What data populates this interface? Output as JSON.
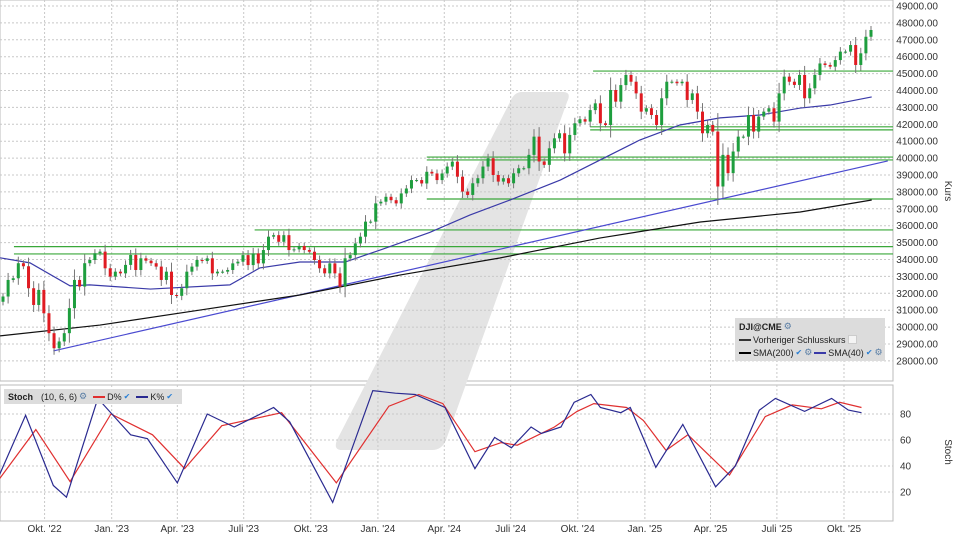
{
  "chart_data": [
    {
      "type": "candlestick",
      "symbol": "DJI@CME",
      "ylabel": "Kurs",
      "ylim": [
        27000,
        49000
      ],
      "yticks": [
        "28000.00",
        "29000.00",
        "30000.00",
        "31000.00",
        "32000.00",
        "33000.00",
        "34000.00",
        "35000.00",
        "36000.00",
        "37000.00",
        "38000.00",
        "39000.00",
        "40000.00",
        "41000.00",
        "42000.00",
        "43000.00",
        "44000.00",
        "45000.00",
        "46000.00",
        "47000.00",
        "48000.00",
        "49000.00"
      ],
      "xticks": [
        {
          "date": "2022-10-01",
          "label": "Okt. '22"
        },
        {
          "date": "2023-01-01",
          "label": "Jan. '23"
        },
        {
          "date": "2023-04-01",
          "label": "Apr. '23"
        },
        {
          "date": "2023-07-01",
          "label": "Juli '23"
        },
        {
          "date": "2023-10-01",
          "label": "Okt. '23"
        },
        {
          "date": "2024-01-01",
          "label": "Jan. '24"
        },
        {
          "date": "2024-04-01",
          "label": "Apr. '24"
        },
        {
          "date": "2024-07-01",
          "label": "Juli '24"
        },
        {
          "date": "2024-10-01",
          "label": "Okt. '24"
        },
        {
          "date": "2025-01-01",
          "label": "Jan. '25"
        },
        {
          "date": "2025-04-01",
          "label": "Apr. '25"
        },
        {
          "date": "2025-07-01",
          "label": "Juli '25"
        },
        {
          "date": "2025-10-01",
          "label": "Okt. '25"
        }
      ],
      "grid": true,
      "interval": "weekly",
      "first_date": "2022-08-05",
      "first_open": 31500,
      "close": [
        31810,
        32790,
        32890,
        33780,
        33600,
        32300,
        31310,
        32200,
        30820,
        29640,
        28750,
        29150,
        29640,
        31120,
        32790,
        32400,
        33780,
        33970,
        34370,
        34465,
        33480,
        32990,
        33280,
        33180,
        33680,
        34270,
        33380,
        34070,
        33930,
        33780,
        33580,
        32790,
        33280,
        31900,
        31850,
        32300,
        33280,
        33580,
        33970,
        33910,
        34070,
        33180,
        33280,
        33280,
        33380,
        33770,
        33870,
        34260,
        33670,
        34360,
        33770,
        34560,
        35350,
        35440,
        35050,
        35440,
        34560,
        34600,
        34800,
        34560,
        34460,
        33970,
        33480,
        33180,
        33770,
        33180,
        32390,
        34070,
        34260,
        34950,
        35350,
        36240,
        36240,
        37320,
        37420,
        37710,
        37510,
        37320,
        37910,
        38200,
        38700,
        38700,
        38500,
        39190,
        39090,
        38700,
        39090,
        39500,
        39790,
        38900,
        38020,
        37820,
        38510,
        38810,
        39500,
        39990,
        39000,
        38610,
        38810,
        38510,
        39100,
        39400,
        39400,
        40190,
        41270,
        39800,
        39600,
        40580,
        41170,
        41470,
        40280,
        41370,
        42060,
        42300,
        42160,
        42840,
        43240,
        42060,
        41960,
        44030,
        43340,
        44320,
        44920,
        44520,
        43830,
        42750,
        42950,
        42550,
        41960,
        43540,
        44520,
        44520,
        44430,
        44520,
        43440,
        43830,
        42750,
        41470,
        41960,
        41570,
        38320,
        40190,
        39110,
        40390,
        41270,
        41270,
        42550,
        41570,
        42460,
        42750,
        42950,
        42160,
        43830,
        44820,
        44520,
        44330,
        44920,
        43540,
        44130,
        44920,
        45600,
        45510,
        45410,
        45800,
        46300,
        46300,
        46690,
        45510,
        46200,
        47180,
        47580
      ],
      "colors": {
        "up": "#1e9e3e",
        "down": "#e01b22",
        "wick": "#777777"
      },
      "sma": [
        {
          "name": "SMA(200)",
          "color": "#111111",
          "points": [
            [
              "2022-08-01",
              29480
            ],
            [
              "2022-12-16",
              30120
            ],
            [
              "2023-05-02",
              31010
            ],
            [
              "2023-09-16",
              31900
            ],
            [
              "2024-01-31",
              33080
            ],
            [
              "2024-06-16",
              34090
            ],
            [
              "2024-10-31",
              35270
            ],
            [
              "2025-03-18",
              36220
            ],
            [
              "2025-08-02",
              36810
            ],
            [
              "2025-11-08",
              37520
            ]
          ]
        },
        {
          "name": "SMA(40)",
          "color": "#3a3aa8",
          "points": [
            [
              "2022-08-01",
              34100
            ],
            [
              "2022-09-11",
              33800
            ],
            [
              "2022-11-05",
              32440
            ],
            [
              "2022-12-02",
              32500
            ],
            [
              "2023-02-23",
              32250
            ],
            [
              "2023-06-12",
              32500
            ],
            [
              "2023-07-23",
              33500
            ],
            [
              "2023-09-16",
              33850
            ],
            [
              "2023-11-17",
              33850
            ],
            [
              "2024-01-04",
              34560
            ],
            [
              "2024-03-12",
              35600
            ],
            [
              "2024-05-06",
              36630
            ],
            [
              "2024-06-30",
              37520
            ],
            [
              "2024-09-07",
              38700
            ],
            [
              "2024-11-14",
              40180
            ],
            [
              "2024-12-25",
              41070
            ],
            [
              "2025-02-18",
              41960
            ],
            [
              "2025-04-14",
              42380
            ],
            [
              "2025-06-08",
              42550
            ],
            [
              "2025-08-02",
              42960
            ],
            [
              "2025-09-12",
              43140
            ],
            [
              "2025-11-08",
              43620
            ]
          ]
        }
      ],
      "trendline": {
        "color": "#4a4ad0",
        "from": [
          "2022-10-13",
          28590
        ],
        "to": [
          "2025-11-30",
          39830
        ]
      },
      "horizontal_lines": {
        "color": "#3aa83a",
        "lines": [
          {
            "from": "2024-10-22",
            "value": 45150
          },
          {
            "from": "2024-10-18",
            "value": 41850
          },
          {
            "from": "2024-10-18",
            "value": 41670
          },
          {
            "from": "2024-03-08",
            "value": 40060
          },
          {
            "from": "2024-03-08",
            "value": 39890
          },
          {
            "from": "2024-03-08",
            "value": 37580
          },
          {
            "from": "2023-07-16",
            "value": 35750
          },
          {
            "from": "2022-08-20",
            "value": 34760
          },
          {
            "from": "2022-08-20",
            "value": 34330
          }
        ]
      },
      "legend": {
        "title": "DJI@CME",
        "prev_close": "Vorheriger Schlusskurs",
        "sma200": "SMA(200)",
        "sma40": "SMA(40)",
        "placement": "bottom-right"
      }
    },
    {
      "type": "line",
      "title": "Stoch",
      "params": "(10, 6, 6)",
      "ylabel": "Stoch",
      "ylim": [
        0,
        100
      ],
      "yticks": [
        "20",
        "40",
        "60",
        "80"
      ],
      "grid": true,
      "legend": {
        "placement": "top-left"
      },
      "series": [
        {
          "name": "D%",
          "color": "#e03030",
          "points": [
            [
              "2022-07-31",
              30
            ],
            [
              "2022-09-19",
              68
            ],
            [
              "2022-11-05",
              28
            ],
            [
              "2022-12-31",
              80
            ],
            [
              "2023-02-26",
              64
            ],
            [
              "2023-04-11",
              38
            ],
            [
              "2023-06-01",
              71
            ],
            [
              "2023-08-22",
              81
            ],
            [
              "2023-11-05",
              27
            ],
            [
              "2024-01-16",
              86
            ],
            [
              "2024-02-26",
              95
            ],
            [
              "2024-03-30",
              88
            ],
            [
              "2024-05-13",
              51
            ],
            [
              "2024-06-18",
              58
            ],
            [
              "2024-07-10",
              56
            ],
            [
              "2024-08-30",
              70
            ],
            [
              "2024-09-30",
              82
            ],
            [
              "2024-10-23",
              88
            ],
            [
              "2024-12-07",
              85
            ],
            [
              "2024-12-30",
              75
            ],
            [
              "2025-01-30",
              52
            ],
            [
              "2025-03-01",
              64
            ],
            [
              "2025-04-27",
              33
            ],
            [
              "2025-06-15",
              78
            ],
            [
              "2025-07-22",
              87
            ],
            [
              "2025-08-31",
              84
            ],
            [
              "2025-09-25",
              89
            ],
            [
              "2025-10-25",
              85
            ]
          ]
        },
        {
          "name": "K%",
          "color": "#2a2a90",
          "points": [
            [
              "2022-07-31",
              33
            ],
            [
              "2022-09-05",
              79
            ],
            [
              "2022-10-13",
              25
            ],
            [
              "2022-10-31",
              16
            ],
            [
              "2022-12-13",
              92
            ],
            [
              "2023-01-27",
              64
            ],
            [
              "2023-02-19",
              61
            ],
            [
              "2023-04-01",
              27
            ],
            [
              "2023-05-12",
              80
            ],
            [
              "2023-06-18",
              70
            ],
            [
              "2023-08-11",
              85
            ],
            [
              "2023-09-02",
              74
            ],
            [
              "2023-10-31",
              12
            ],
            [
              "2023-12-25",
              98
            ],
            [
              "2024-01-25",
              96
            ],
            [
              "2024-02-21",
              95
            ],
            [
              "2024-04-02",
              85
            ],
            [
              "2024-05-13",
              38
            ],
            [
              "2024-06-09",
              62
            ],
            [
              "2024-07-02",
              54
            ],
            [
              "2024-07-29",
              70
            ],
            [
              "2024-08-12",
              65
            ],
            [
              "2024-09-08",
              70
            ],
            [
              "2024-09-26",
              89
            ],
            [
              "2024-10-19",
              95
            ],
            [
              "2024-11-01",
              85
            ],
            [
              "2024-11-29",
              81
            ],
            [
              "2024-12-12",
              85
            ],
            [
              "2025-01-16",
              39
            ],
            [
              "2025-02-22",
              72
            ],
            [
              "2025-04-08",
              24
            ],
            [
              "2025-05-05",
              40
            ],
            [
              "2025-06-07",
              83
            ],
            [
              "2025-06-29",
              92
            ],
            [
              "2025-08-08",
              82
            ],
            [
              "2025-09-14",
              92
            ],
            [
              "2025-10-07",
              83
            ],
            [
              "2025-10-25",
              81
            ]
          ]
        }
      ]
    }
  ]
}
